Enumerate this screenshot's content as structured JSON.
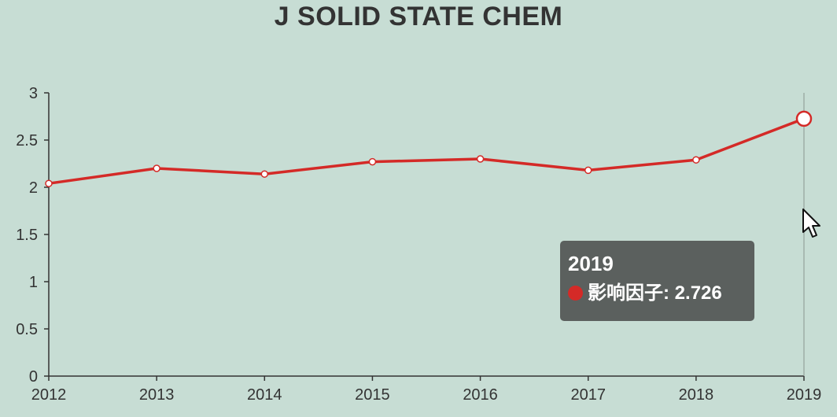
{
  "chart_data": {
    "type": "line",
    "title": "J SOLID STATE CHEM",
    "xlabel": "",
    "ylabel": "",
    "categories": [
      "2012",
      "2013",
      "2014",
      "2015",
      "2016",
      "2017",
      "2018",
      "2019"
    ],
    "series": [
      {
        "name": "影响因子",
        "values": [
          2.04,
          2.2,
          2.14,
          2.27,
          2.3,
          2.18,
          2.29,
          2.726
        ],
        "color": "#d42a27"
      }
    ],
    "ylim": [
      0,
      3
    ],
    "yticks": [
      "0",
      "0.5",
      "1",
      "1.5",
      "2",
      "2.5",
      "3"
    ],
    "grid": false,
    "highlighted_index": 7
  },
  "tooltip": {
    "title": "2019",
    "series_name": "影响因子",
    "value": "2.726",
    "separator": ": "
  },
  "colors": {
    "background": "#c7ddd4",
    "line": "#d42a27",
    "axis": "#333333",
    "tooltip_bg": "#555857"
  }
}
